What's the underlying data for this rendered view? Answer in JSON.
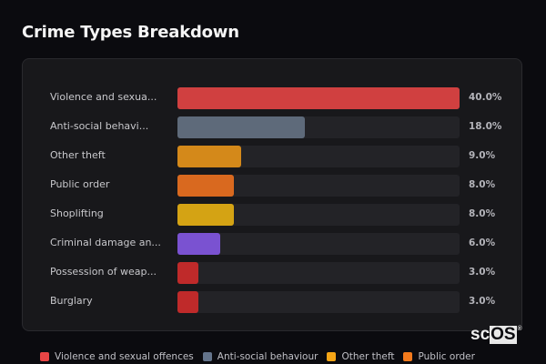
{
  "header": {
    "title": "Crime Types Breakdown"
  },
  "chart_data": {
    "type": "bar",
    "orientation": "horizontal",
    "title": "Crime Types Breakdown",
    "categories": [
      "Violence and sexual offences",
      "Anti-social behaviour",
      "Other theft",
      "Public order",
      "Shoplifting",
      "Criminal damage and arson",
      "Possession of weapons",
      "Burglary"
    ],
    "display_labels": [
      "Violence and sexua...",
      "Anti-social behavi...",
      "Other theft",
      "Public order",
      "Shoplifting",
      "Criminal damage an...",
      "Possession of weap...",
      "Burglary"
    ],
    "values": [
      40.0,
      18.0,
      9.0,
      8.0,
      8.0,
      6.0,
      3.0,
      3.0
    ],
    "value_labels": [
      "40.0%",
      "18.0%",
      "9.0%",
      "8.0%",
      "8.0%",
      "6.0%",
      "3.0%",
      "3.0%"
    ],
    "colors": [
      "#d04040",
      "#5e6a7a",
      "#d4891a",
      "#d9691f",
      "#d4a314",
      "#7a52d1",
      "#bf2a2a",
      "#bf2a2a"
    ],
    "xlim": [
      0,
      40
    ],
    "unit": "%",
    "grid": false,
    "legend": {
      "position": "bottom",
      "entries": [
        {
          "label": "Violence and sexual offences",
          "color": "#e84545"
        },
        {
          "label": "Anti-social behaviour",
          "color": "#64748b"
        },
        {
          "label": "Other theft",
          "color": "#f5a516"
        },
        {
          "label": "Public order",
          "color": "#f37a1c"
        }
      ]
    }
  },
  "brand": {
    "prefix": "sc",
    "highlight": "OS",
    "mark": "®"
  }
}
